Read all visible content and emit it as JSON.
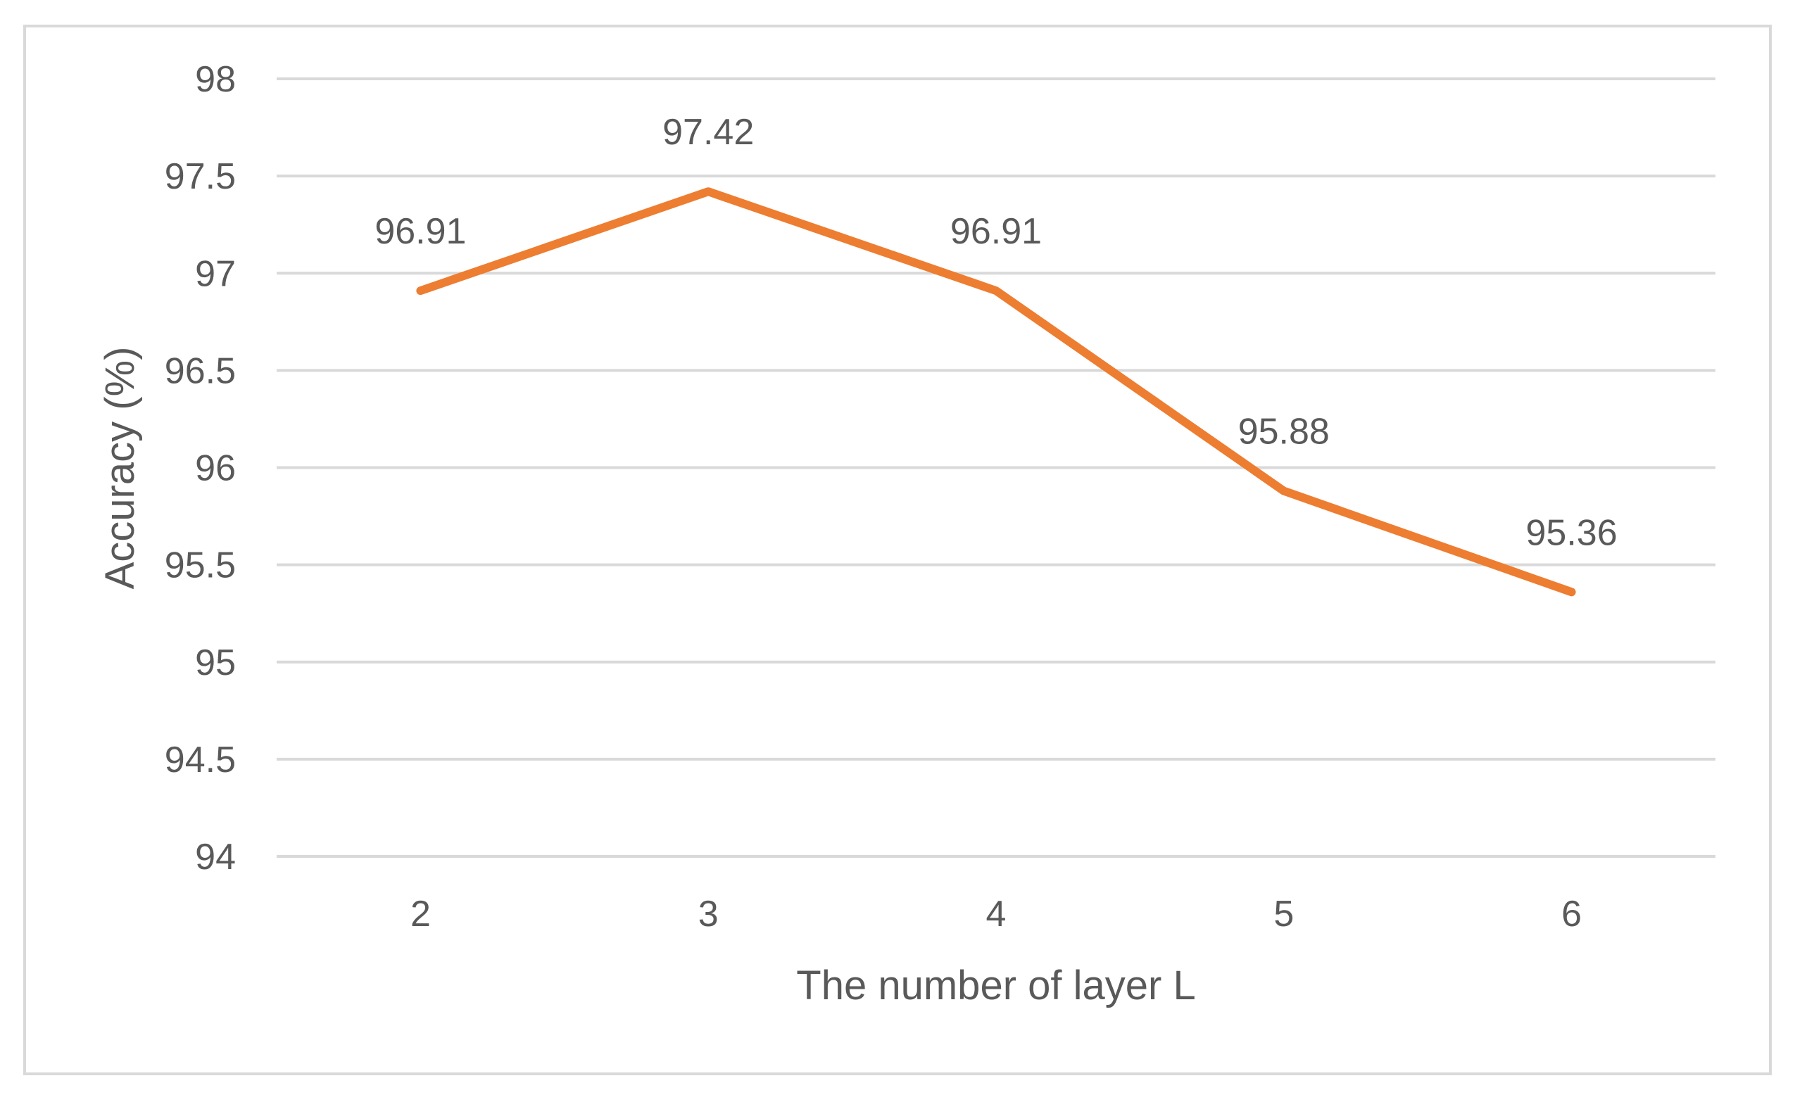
{
  "chart_data": {
    "type": "line",
    "categories": [
      "2",
      "3",
      "4",
      "5",
      "6"
    ],
    "series": [
      {
        "values": [
          96.91,
          97.42,
          96.91,
          95.88,
          95.36
        ],
        "data_labels": [
          "96.91",
          "97.42",
          "96.91",
          "95.88",
          "95.36"
        ],
        "color": "#ED7D31"
      }
    ],
    "xlabel": "The number of layer L",
    "ylabel": "Accuracy (%)",
    "ylim": [
      94,
      98
    ],
    "yticks": [
      94,
      94.5,
      95,
      95.5,
      96,
      96.5,
      97,
      97.5,
      98
    ],
    "ytick_labels": [
      "94",
      "94.5",
      "95",
      "95.5",
      "96",
      "96.5",
      "97",
      "97.5",
      "98"
    ],
    "grid": true,
    "legend": "none",
    "colors": {
      "line": "#ED7D31",
      "grid": "#D9D9D9",
      "text": "#595959",
      "border": "#D9D9D9"
    }
  }
}
